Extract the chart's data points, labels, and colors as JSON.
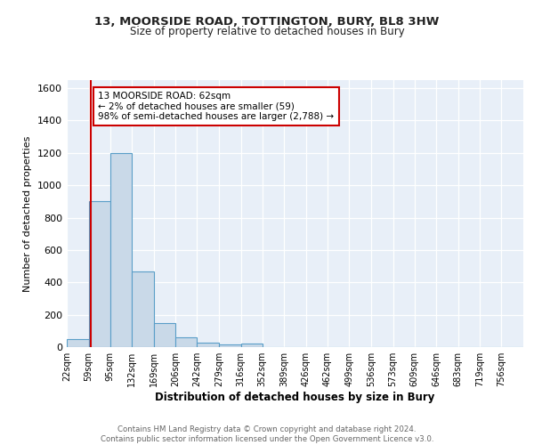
{
  "title1": "13, MOORSIDE ROAD, TOTTINGTON, BURY, BL8 3HW",
  "title2": "Size of property relative to detached houses in Bury",
  "xlabel": "Distribution of detached houses by size in Bury",
  "ylabel": "Number of detached properties",
  "bin_labels": [
    "22sqm",
    "59sqm",
    "95sqm",
    "132sqm",
    "169sqm",
    "206sqm",
    "242sqm",
    "279sqm",
    "316sqm",
    "352sqm",
    "389sqm",
    "426sqm",
    "462sqm",
    "499sqm",
    "536sqm",
    "573sqm",
    "609sqm",
    "646sqm",
    "683sqm",
    "719sqm",
    "756sqm"
  ],
  "bin_values": [
    50,
    900,
    1200,
    470,
    150,
    60,
    30,
    15,
    20,
    0,
    0,
    0,
    0,
    0,
    0,
    0,
    0,
    0,
    0,
    0,
    0
  ],
  "bar_color": "#c9d9e8",
  "bar_edge_color": "#5a9ec8",
  "property_line_x": 62,
  "property_line_color": "#cc0000",
  "annotation_text": "13 MOORSIDE ROAD: 62sqm\n← 2% of detached houses are smaller (59)\n98% of semi-detached houses are larger (2,788) →",
  "annotation_box_color": "#ffffff",
  "annotation_box_edge": "#cc0000",
  "ylim": [
    0,
    1650
  ],
  "bin_edges": [
    22,
    59,
    95,
    132,
    169,
    206,
    242,
    279,
    316,
    352,
    389,
    426,
    462,
    499,
    536,
    573,
    609,
    646,
    683,
    719,
    756
  ],
  "footer_text": "Contains HM Land Registry data © Crown copyright and database right 2024.\nContains public sector information licensed under the Open Government Licence v3.0.",
  "fig_bg_color": "#ffffff",
  "plot_bg_color": "#e8eff8"
}
